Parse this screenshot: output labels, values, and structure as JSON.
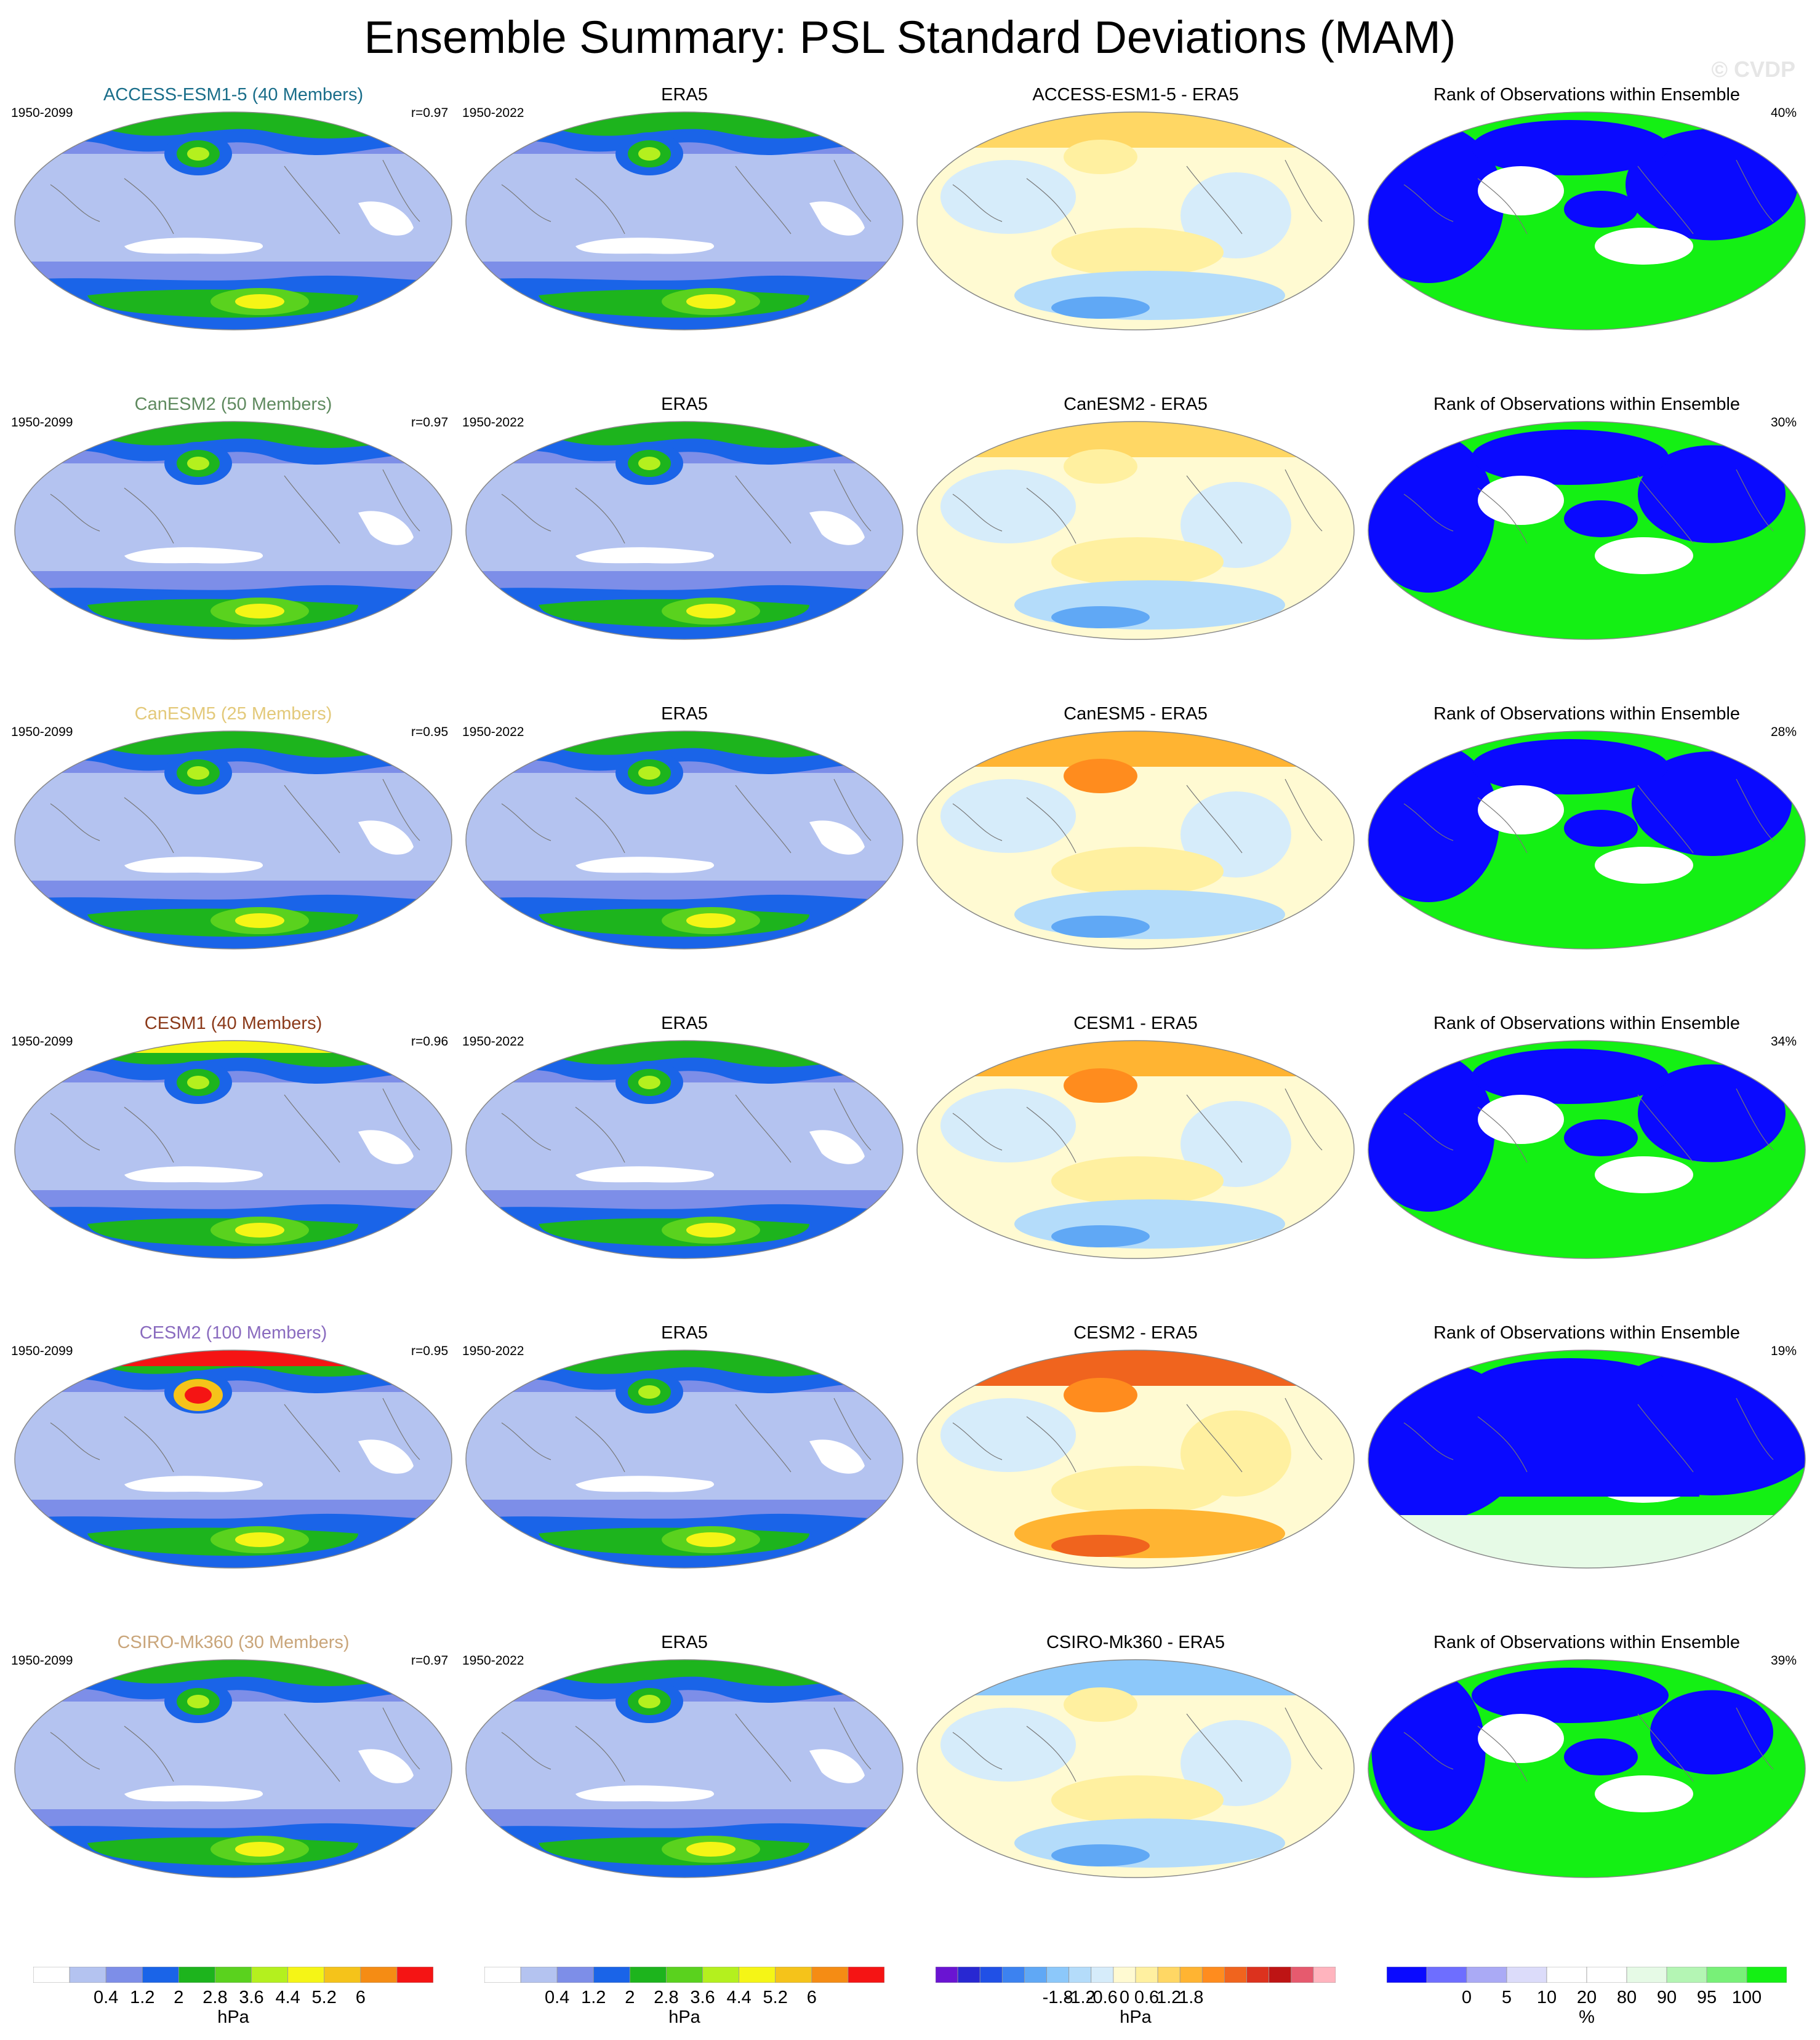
{
  "title": "Ensemble Summary: PSL Standard Deviations (MAM)",
  "watermark": "© CVDP",
  "rows": [
    {
      "model": "ACCESS-ESM1-5 (40 Members)",
      "model_color": "#1a6e8a",
      "years": "1950-2099",
      "r": "r=0.97",
      "obs_title": "ERA5",
      "obs_years": "1950-2022",
      "diff_title": "ACCESS-ESM1-5 - ERA5",
      "rank_title": "Rank of Observations within Ensemble",
      "rank_pct": "40%"
    },
    {
      "model": "CanESM2 (50 Members)",
      "model_color": "#5f8a5f",
      "years": "1950-2099",
      "r": "r=0.97",
      "obs_title": "ERA5",
      "obs_years": "1950-2022",
      "diff_title": "CanESM2 - ERA5",
      "rank_title": "Rank of Observations within Ensemble",
      "rank_pct": "30%"
    },
    {
      "model": "CanESM5 (25 Members)",
      "model_color": "#e3c97a",
      "years": "1950-2099",
      "r": "r=0.95",
      "obs_title": "ERA5",
      "obs_years": "1950-2022",
      "diff_title": "CanESM5 - ERA5",
      "rank_title": "Rank of Observations within Ensemble",
      "rank_pct": "28%"
    },
    {
      "model": "CESM1 (40 Members)",
      "model_color": "#8b3a1a",
      "years": "1950-2099",
      "r": "r=0.96",
      "obs_title": "ERA5",
      "obs_years": "1950-2022",
      "diff_title": "CESM1 - ERA5",
      "rank_title": "Rank of Observations within Ensemble",
      "rank_pct": "34%"
    },
    {
      "model": "CESM2 (100 Members)",
      "model_color": "#8a6bbf",
      "years": "1950-2099",
      "r": "r=0.95",
      "obs_title": "ERA5",
      "obs_years": "1950-2022",
      "diff_title": "CESM2 - ERA5",
      "rank_title": "Rank of Observations within Ensemble",
      "rank_pct": "19%"
    },
    {
      "model": "CSIRO-Mk360 (30 Members)",
      "model_color": "#c9a57a",
      "years": "1950-2099",
      "r": "r=0.97",
      "obs_title": "ERA5",
      "obs_years": "1950-2022",
      "diff_title": "CSIRO-Mk360 - ERA5",
      "rank_title": "Rank of Observations within Ensemble",
      "rank_pct": "39%"
    }
  ],
  "colorbars": [
    {
      "unit": "hPa",
      "labels": [
        "0.4",
        "1.2",
        "2",
        "2.8",
        "3.6",
        "4.4",
        "5.2",
        "6"
      ],
      "colors": [
        "#ffffff",
        "#b4c3f0",
        "#7d8ee8",
        "#1a64e8",
        "#1db41d",
        "#5ad21e",
        "#b4f01e",
        "#f5f516",
        "#f5c31a",
        "#f58c14",
        "#f51414"
      ]
    },
    {
      "unit": "hPa",
      "labels": [
        "0.4",
        "1.2",
        "2",
        "2.8",
        "3.6",
        "4.4",
        "5.2",
        "6"
      ],
      "colors": [
        "#ffffff",
        "#b4c3f0",
        "#7d8ee8",
        "#1a64e8",
        "#1db41d",
        "#5ad21e",
        "#b4f01e",
        "#f5f516",
        "#f5c31a",
        "#f58c14",
        "#f51414"
      ]
    },
    {
      "unit": "hPa",
      "labels": [
        "-1.8",
        "-1.2",
        "-0.6",
        "0",
        "0.6",
        "1.2",
        "1.8"
      ],
      "colors": [
        "#6a14d2",
        "#2828d2",
        "#2050e6",
        "#3c82f0",
        "#60a8f5",
        "#8cc8fa",
        "#b4dcfa",
        "#d6ecfa",
        "#fffad2",
        "#fff0a0",
        "#ffd764",
        "#ffb432",
        "#ff8c1e",
        "#f0641e",
        "#dc321e",
        "#be1414",
        "#e65a6e",
        "#ffb4be"
      ]
    },
    {
      "unit": "%",
      "labels": [
        "0",
        "5",
        "10",
        "20",
        "80",
        "90",
        "95",
        "100"
      ],
      "colors": [
        "#0a0aff",
        "#6e6eff",
        "#aaaaf5",
        "#dcdcfa",
        "#ffffff",
        "#ffffff",
        "#e6fae6",
        "#b4f5b4",
        "#78f078",
        "#14f014"
      ]
    }
  ]
}
